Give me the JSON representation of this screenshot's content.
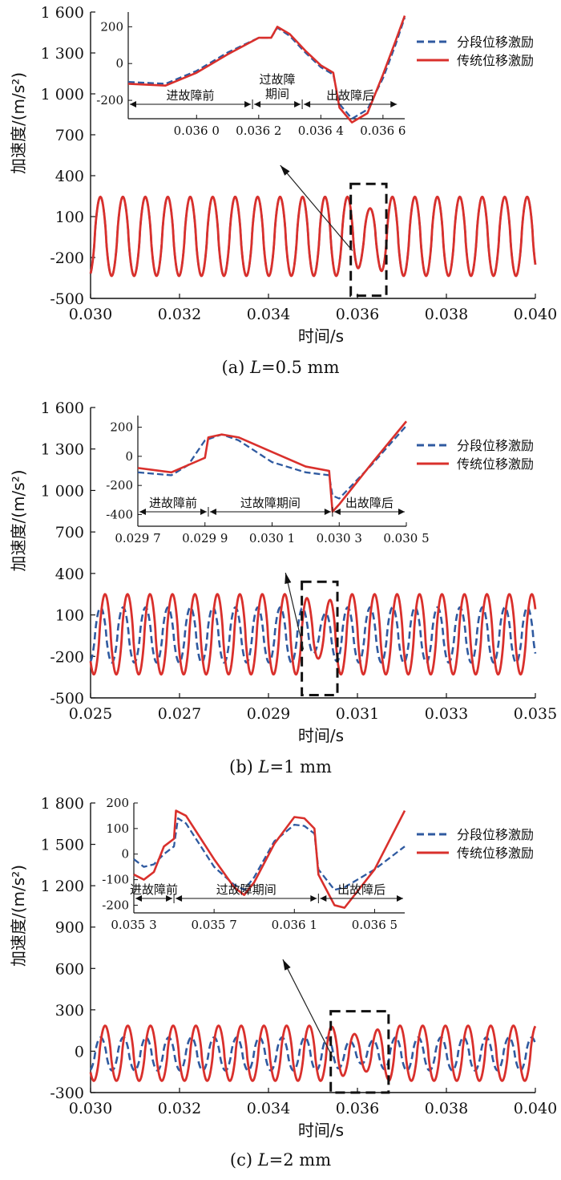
{
  "chart_data": [
    {
      "type": "line",
      "caption_prefix": "(a)  ",
      "caption_italic": "L",
      "caption_suffix": "=0.5 mm",
      "xlabel": "时间/s",
      "ylabel": "加速度/(m/s²)",
      "xlim": [
        0.03,
        0.04
      ],
      "ylim": [
        -500,
        1600
      ],
      "xticks": [
        "0.030",
        "0.032",
        "0.034",
        "0.036",
        "0.038",
        "0.040"
      ],
      "yticks": [
        "1 600",
        "1 300",
        "1 000",
        "700",
        "400",
        "100",
        "-200",
        "-500"
      ],
      "legend": [
        "分段位移激励",
        "传统位移激励"
      ],
      "colors": {
        "segmented": "#2f5aa0",
        "traditional": "#d9302c"
      },
      "series": [
        {
          "name": "分段位移激励",
          "style": "dashed",
          "amplitude": 290,
          "offset": -45,
          "period": 0.000505,
          "phase": 0.0306
        },
        {
          "name": "传统位移激励",
          "style": "solid",
          "amplitude": 290,
          "offset": -45,
          "period": 0.000505,
          "phase": 0.0306
        }
      ],
      "fault_window": [
        0.03585,
        0.03665
      ],
      "inset": {
        "xlim": [
          0.03578,
          0.03667
        ],
        "ylim": [
          -300,
          280
        ],
        "xticks": [
          "0.036 0",
          "0.036 2",
          "0.036 4",
          "0.036 6"
        ],
        "yticks": [
          "200",
          "0",
          "-200"
        ],
        "regions": [
          "进故障前",
          "过故障期间",
          "出故障后"
        ],
        "region_bounds": [
          0.03578,
          0.03618,
          0.03634,
          0.03665
        ],
        "series": {
          "segmented": [
            [
              0.03578,
              -100
            ],
            [
              0.0359,
              -110
            ],
            [
              0.036,
              -40
            ],
            [
              0.0361,
              60
            ],
            [
              0.0362,
              140
            ],
            [
              0.03624,
              140
            ],
            [
              0.03626,
              195
            ],
            [
              0.0363,
              150
            ],
            [
              0.03635,
              60
            ],
            [
              0.0364,
              -20
            ],
            [
              0.03644,
              -60
            ],
            [
              0.03646,
              -220
            ],
            [
              0.0365,
              -300
            ],
            [
              0.03655,
              -250
            ],
            [
              0.0366,
              -80
            ],
            [
              0.03664,
              100
            ],
            [
              0.03667,
              250
            ]
          ],
          "traditional": [
            [
              0.03578,
              -110
            ],
            [
              0.0359,
              -120
            ],
            [
              0.036,
              -50
            ],
            [
              0.0361,
              50
            ],
            [
              0.0362,
              140
            ],
            [
              0.03624,
              140
            ],
            [
              0.03626,
              200
            ],
            [
              0.0363,
              160
            ],
            [
              0.03635,
              70
            ],
            [
              0.0364,
              -10
            ],
            [
              0.03644,
              -50
            ],
            [
              0.03646,
              -240
            ],
            [
              0.0365,
              -320
            ],
            [
              0.03655,
              -270
            ],
            [
              0.0366,
              -60
            ],
            [
              0.03664,
              120
            ],
            [
              0.03667,
              260
            ]
          ]
        }
      }
    },
    {
      "type": "line",
      "caption_prefix": "(b)  ",
      "caption_italic": "L",
      "caption_suffix": "=1 mm",
      "xlabel": "时间/s",
      "ylabel": "加速度/(m/s²)",
      "xlim": [
        0.025,
        0.035
      ],
      "ylim": [
        -500,
        1600
      ],
      "xticks": [
        "0.025",
        "0.027",
        "0.029",
        "0.031",
        "0.033",
        "0.035"
      ],
      "yticks": [
        "1 600",
        "1 300",
        "1 000",
        "700",
        "400",
        "100",
        "-200",
        "-500"
      ],
      "legend": [
        "分段位移激励",
        "传统位移激励"
      ],
      "colors": {
        "segmented": "#2f5aa0",
        "traditional": "#d9302c"
      },
      "series": [
        {
          "name": "分段位移激励",
          "style": "dashed",
          "amplitude": 200,
          "offset": -45,
          "period": 0.000505,
          "phase": 0.0251
        },
        {
          "name": "传统位移激励",
          "style": "solid",
          "amplitude": 290,
          "offset": -40,
          "period": 0.000505,
          "phase": 0.0252
        }
      ],
      "fault_window": [
        0.02975,
        0.03055
      ],
      "inset": {
        "xlim": [
          0.0297,
          0.0305
        ],
        "ylim": [
          -480,
          280
        ],
        "xticks": [
          "0.029 7",
          "0.029 9",
          "0.030 1",
          "0.030 3",
          "0.030 5"
        ],
        "yticks": [
          "200",
          "0",
          "-200",
          "-400"
        ],
        "regions": [
          "进故障前",
          "过故障期间",
          "出故障后"
        ],
        "region_bounds": [
          0.0297,
          0.02991,
          0.03028,
          0.0305
        ],
        "series": {
          "segmented": [
            [
              0.0297,
              -110
            ],
            [
              0.0298,
              -130
            ],
            [
              0.02985,
              -60
            ],
            [
              0.0299,
              110
            ],
            [
              0.02995,
              150
            ],
            [
              0.03,
              110
            ],
            [
              0.0301,
              -40
            ],
            [
              0.0302,
              -110
            ],
            [
              0.03027,
              -130
            ],
            [
              0.03028,
              -270
            ],
            [
              0.0303,
              -290
            ],
            [
              0.0304,
              -50
            ],
            [
              0.0305,
              210
            ]
          ],
          "traditional": [
            [
              0.0297,
              -80
            ],
            [
              0.0298,
              -110
            ],
            [
              0.0299,
              -10
            ],
            [
              0.02991,
              130
            ],
            [
              0.02995,
              150
            ],
            [
              0.03,
              130
            ],
            [
              0.0301,
              30
            ],
            [
              0.0302,
              -70
            ],
            [
              0.03027,
              -100
            ],
            [
              0.03028,
              -380
            ],
            [
              0.0303,
              -330
            ],
            [
              0.0304,
              -40
            ],
            [
              0.0305,
              240
            ]
          ]
        }
      }
    },
    {
      "type": "line",
      "caption_prefix": "(c)  ",
      "caption_italic": "L",
      "caption_suffix": "=2 mm",
      "xlabel": "时间/s",
      "ylabel": "加速度/(m/s²)",
      "xlim": [
        0.03,
        0.04
      ],
      "ylim": [
        -300,
        1800
      ],
      "xticks": [
        "0.030",
        "0.032",
        "0.034",
        "0.036",
        "0.038",
        "0.040"
      ],
      "yticks": [
        "1 800",
        "1 500",
        "1 200",
        "900",
        "600",
        "300",
        "0",
        "-300"
      ],
      "legend": [
        "分段位移激励",
        "传统位移激励"
      ],
      "colors": {
        "segmented": "#2f5aa0",
        "traditional": "#d9302c"
      },
      "series": [
        {
          "name": "分段位移激励",
          "style": "dashed",
          "amplitude": 120,
          "offset": -20,
          "period": 0.00051,
          "phase": 0.0301
        },
        {
          "name": "传统位移激励",
          "style": "solid",
          "amplitude": 200,
          "offset": -15,
          "period": 0.00051,
          "phase": 0.0302
        }
      ],
      "fault_window": [
        0.0354,
        0.0367
      ],
      "inset": {
        "xlim": [
          0.0353,
          0.03665
        ],
        "ylim": [
          -230,
          200
        ],
        "xticks": [
          "0.035 3",
          "0.035 7",
          "0.036 1",
          "0.036 5"
        ],
        "yticks": [
          "200",
          "100",
          "0",
          "-100",
          "-200"
        ],
        "regions": [
          "进故障前",
          "过故障期间",
          "出故障后"
        ],
        "region_bounds": [
          0.0353,
          0.0355,
          0.03622,
          0.03665
        ],
        "series": {
          "segmented": [
            [
              0.0353,
              -20
            ],
            [
              0.03535,
              -50
            ],
            [
              0.0354,
              -40
            ],
            [
              0.03545,
              0
            ],
            [
              0.0355,
              30
            ],
            [
              0.03552,
              140
            ],
            [
              0.03556,
              120
            ],
            [
              0.0357,
              -50
            ],
            [
              0.0358,
              -120
            ],
            [
              0.03585,
              -140
            ],
            [
              0.0359,
              -90
            ],
            [
              0.036,
              50
            ],
            [
              0.0361,
              115
            ],
            [
              0.03615,
              110
            ],
            [
              0.0362,
              80
            ],
            [
              0.03622,
              -60
            ],
            [
              0.0363,
              -140
            ],
            [
              0.03635,
              -130
            ],
            [
              0.0365,
              -60
            ],
            [
              0.03665,
              30
            ]
          ],
          "traditional": [
            [
              0.0353,
              -80
            ],
            [
              0.03535,
              -100
            ],
            [
              0.0354,
              -70
            ],
            [
              0.03545,
              30
            ],
            [
              0.0355,
              60
            ],
            [
              0.03551,
              170
            ],
            [
              0.03556,
              150
            ],
            [
              0.0357,
              -20
            ],
            [
              0.0358,
              -130
            ],
            [
              0.03585,
              -160
            ],
            [
              0.0359,
              -110
            ],
            [
              0.036,
              40
            ],
            [
              0.0361,
              145
            ],
            [
              0.03615,
              140
            ],
            [
              0.0362,
              100
            ],
            [
              0.03622,
              -80
            ],
            [
              0.0363,
              -200
            ],
            [
              0.03635,
              -210
            ],
            [
              0.0365,
              -60
            ],
            [
              0.03665,
              170
            ]
          ]
        }
      }
    }
  ]
}
